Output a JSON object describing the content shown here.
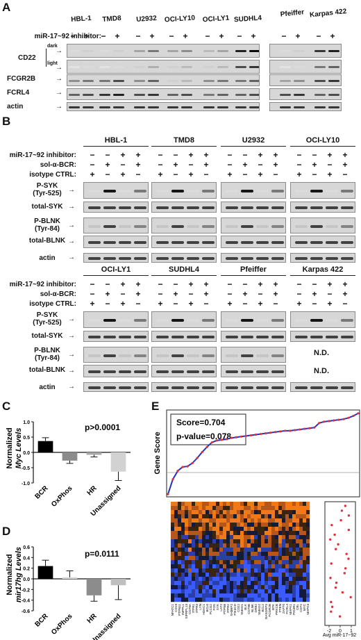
{
  "panels": {
    "A": {
      "label": "A",
      "inhibitor_label": "miR-17~92 inhibitor:",
      "cell_lines": [
        "HBL-1",
        "TMD8",
        "U2932",
        "OCI-LY10",
        "OCI-LY1",
        "SUDHL4",
        "Pfeiffer",
        "Karpas 422"
      ],
      "signs": [
        "−",
        "+"
      ],
      "rows": [
        "CD22",
        "FCGR2B",
        "FCRL4",
        "actin"
      ],
      "cd22_exposures": [
        "dark",
        "light"
      ]
    },
    "B": {
      "label": "B",
      "condition_labels": [
        "miR-17~92 inhibitor:",
        "sol-α-BCR:",
        "isotype CTRL:"
      ],
      "sign_rows": [
        [
          "−",
          "−",
          "+",
          "+"
        ],
        [
          "−",
          "+",
          "−",
          "+"
        ],
        [
          "+",
          "−",
          "+",
          "−"
        ]
      ],
      "top_cell_lines": [
        "HBL-1",
        "TMD8",
        "U2932",
        "OCI-LY10"
      ],
      "bottom_cell_lines": [
        "OCI-LY1",
        "SUDHL4",
        "Pfeiffer",
        "Karpas 422"
      ],
      "rows": [
        "P-SYK",
        "total-SYK",
        "P-BLNK",
        "total-BLNK",
        "actin"
      ],
      "row_sublabels": [
        "(Tyr-525)",
        "",
        "(Tyr-84)",
        "",
        ""
      ],
      "not_determined": "N.D."
    },
    "C": {
      "label": "C",
      "ylabel_lines": [
        "Normalized",
        "Myc Levels"
      ],
      "p_value": "p>0.0001"
    },
    "D": {
      "label": "D",
      "ylabel_lines": [
        "Normalized",
        "mir17hg Levels"
      ],
      "p_value": "p=0.0111"
    },
    "E": {
      "label": "E",
      "ylabel": "Gene Score",
      "score_text": "Score=0.704",
      "pvalue_text": "p-value=0.078",
      "side_xlabel": "Avg miR-17~92",
      "side_ticks": [
        "-2",
        "0",
        "1"
      ],
      "genes": [
        "NFATC1",
        "CD19",
        "PTPN11",
        "INPPL1",
        "SIPRPL13",
        "CD79A",
        "ITPR1",
        "ITPR3",
        "LYN",
        "HDAC1",
        "BCL6",
        "PLCG2",
        "FOS",
        "SYK",
        "LAT2",
        "PTPN6",
        "ITPR2",
        "SH3BP2",
        "PIK3CD",
        "CD22",
        "SMAD1",
        "BLK",
        "CD79B",
        "BLNK",
        "GRB2",
        "SMAD2",
        "BCL2",
        "RASGRP3",
        "FCGR2B",
        "BTK",
        "PRKCB",
        "PTEN",
        "ZAP70",
        "FCRL4",
        "MAPK1",
        "PIK3R1",
        "CBL",
        "CD72",
        "MYC",
        "MAPK3"
      ]
    }
  },
  "chart_data": [
    {
      "type": "bar",
      "panel": "C",
      "categories": [
        "BCR",
        "OxPhos",
        "HR",
        "Unassigned"
      ],
      "values": [
        0.37,
        -0.27,
        -0.08,
        -0.63
      ],
      "errors": [
        0.11,
        0.09,
        0.07,
        0.29
      ],
      "colors": [
        "#000000",
        "#8c8c8c",
        "#a8a8a8",
        "#d2d2d2"
      ],
      "ylabel": "Normalized Myc Levels",
      "ylim": [
        -1.0,
        1.0
      ],
      "yticks": [
        "1.0",
        "0.5",
        "0.0",
        "-0.5",
        "-1.0"
      ],
      "annotation": "p>0.0001"
    },
    {
      "type": "bar",
      "panel": "D",
      "categories": [
        "BCR",
        "OxPhos",
        "HR",
        "Unassigned"
      ],
      "values": [
        0.24,
        0.03,
        -0.31,
        -0.12
      ],
      "errors": [
        0.11,
        0.12,
        0.11,
        0.27
      ],
      "colors": [
        "#000000",
        "#d9d9d9",
        "#8c8c8c",
        "#bfbfbf"
      ],
      "ylabel": "Normalized mir17hg Levels",
      "ylim": [
        -0.6,
        0.6
      ],
      "yticks": [
        "0.6",
        "0.4",
        "0.2",
        "0.0",
        "-0.2",
        "-0.4",
        "-0.6"
      ],
      "annotation": "p=0.0111"
    },
    {
      "type": "line",
      "panel": "E",
      "ylabel": "Gene Score",
      "ylim": [
        -0.8,
        0.5
      ],
      "values": [
        -0.78,
        -0.55,
        -0.42,
        -0.36,
        -0.35,
        -0.3,
        -0.22,
        -0.13,
        -0.05,
        0.02,
        0.05,
        0.06,
        0.07,
        0.09,
        0.1,
        0.11,
        0.12,
        0.13,
        0.14,
        0.15,
        0.16,
        0.17,
        0.18,
        0.19,
        0.2,
        0.2,
        0.21,
        0.22,
        0.23,
        0.24,
        0.25,
        0.32,
        0.34,
        0.35,
        0.36,
        0.37,
        0.38,
        0.4,
        0.43,
        0.47
      ],
      "annotation": [
        "Score=0.704",
        "p-value=0.078"
      ]
    }
  ]
}
